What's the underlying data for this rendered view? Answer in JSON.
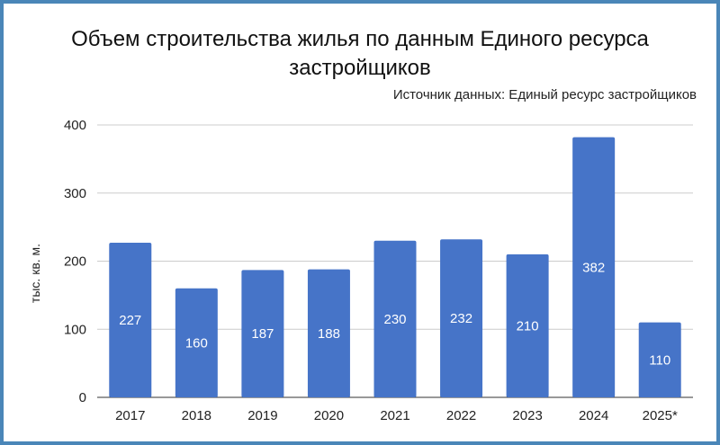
{
  "chart_data": {
    "type": "bar",
    "title": "Объем строительства жилья по данным Единого ресурса застройщиков",
    "subtitle": "Источник данных: Единый ресурс застройщиков",
    "xlabel": "",
    "ylabel": "тыс. кв. м.",
    "categories": [
      "2017",
      "2018",
      "2019",
      "2020",
      "2021",
      "2022",
      "2023",
      "2024",
      "2025*"
    ],
    "values": [
      227,
      160,
      187,
      188,
      230,
      232,
      210,
      382,
      110
    ],
    "ylim": [
      0,
      400
    ],
    "yticks": [
      0,
      100,
      200,
      300,
      400
    ],
    "grid": true,
    "legend": "none",
    "colors": {
      "bar": "#4674c8",
      "grid": "#cccccc",
      "frame": "#4a86b8"
    }
  }
}
